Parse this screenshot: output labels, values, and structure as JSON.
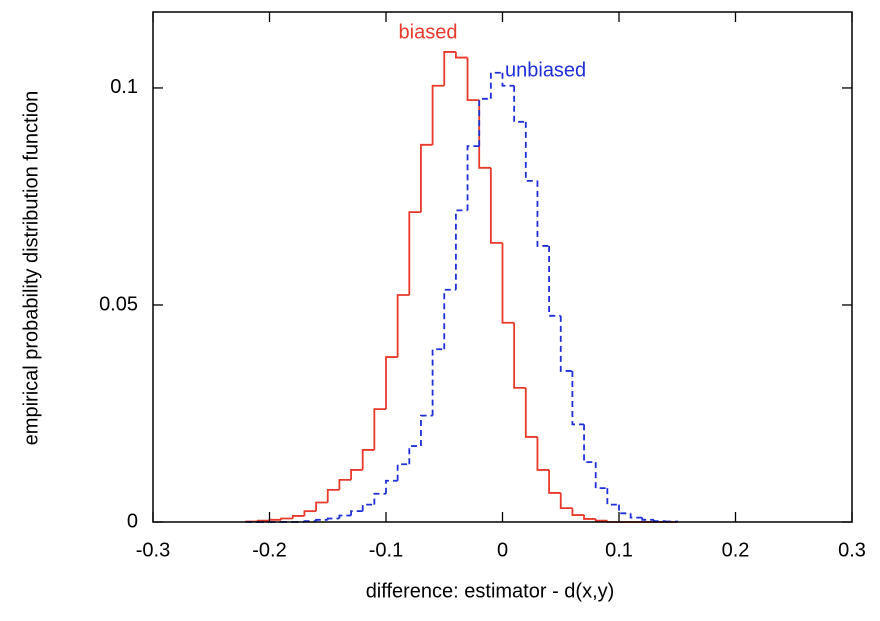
{
  "chart_data": {
    "type": "histogram",
    "xlabel": "difference: estimator - d(x,y)",
    "ylabel": "empirical probability distribution function",
    "bins": [
      -0.22,
      -0.21,
      -0.2,
      -0.19,
      -0.18,
      -0.17,
      -0.16,
      -0.15,
      -0.14,
      -0.13,
      -0.12,
      -0.11,
      -0.1,
      -0.09,
      -0.08,
      -0.07,
      -0.06,
      -0.05,
      -0.04,
      -0.03,
      -0.02,
      -0.01,
      0,
      0.01,
      0.02,
      0.03,
      0.04,
      0.05,
      0.06,
      0.07,
      0.08,
      0.09,
      0.1,
      0.11,
      0.12,
      0.13,
      0.14,
      0.15
    ],
    "series": [
      {
        "name": "biased",
        "color": "#e8392a",
        "dashed": false,
        "values": [
          0.0001,
          0.0003,
          0.0005,
          0.0008,
          0.0014,
          0.0025,
          0.0045,
          0.0074,
          0.0097,
          0.012,
          0.0166,
          0.026,
          0.038,
          0.0523,
          0.0714,
          0.0869,
          0.1005,
          0.1083,
          0.107,
          0.0972,
          0.0816,
          0.0643,
          0.0459,
          0.0309,
          0.0196,
          0.012,
          0.0067,
          0.0032,
          0.0016,
          0.0007,
          0.0003,
          0,
          0,
          0,
          0,
          0,
          0
        ]
      },
      {
        "name": "unbiased",
        "color": "#1f2fd8",
        "dashed": true,
        "values": [
          0,
          0,
          0,
          0,
          0,
          0.0002,
          0.0005,
          0.0008,
          0.0015,
          0.0025,
          0.004,
          0.0065,
          0.0095,
          0.0133,
          0.0175,
          0.0245,
          0.0398,
          0.0535,
          0.0718,
          0.0866,
          0.0975,
          0.1035,
          0.1005,
          0.0922,
          0.0786,
          0.0636,
          0.0475,
          0.0348,
          0.0225,
          0.0138,
          0.0078,
          0.004,
          0.002,
          0.001,
          0.0005,
          0.0002,
          0.0001
        ]
      }
    ],
    "xlim": [
      -0.3,
      0.3
    ],
    "xticks": [
      -0.3,
      -0.2,
      -0.1,
      0,
      0.1,
      0.2,
      0.3
    ],
    "ylim": [
      0,
      0.1175
    ],
    "yticks": [
      0,
      0.05,
      0.1
    ]
  }
}
